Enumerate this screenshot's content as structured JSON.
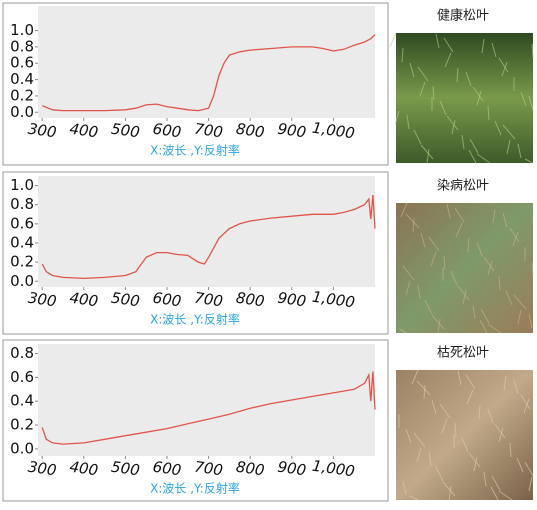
{
  "chart_data": [
    {
      "type": "line",
      "xlabel": "X:波长 ,Y:反射率",
      "color": "#e0554a",
      "xlim": [
        290,
        1100
      ],
      "xticks": [
        300,
        400,
        500,
        600,
        700,
        800,
        900,
        {
          "value": 1000,
          "label": "1,000"
        }
      ],
      "ylim": [
        -0.07,
        1.3
      ],
      "yticks": [
        {
          "value": 0,
          "label": "0.0"
        },
        0.2,
        0.4,
        0.6,
        0.8,
        {
          "value": 1,
          "label": "1.0"
        }
      ],
      "x": [
        300,
        325,
        350,
        400,
        450,
        500,
        525,
        550,
        575,
        600,
        625,
        650,
        675,
        700,
        712,
        725,
        737,
        750,
        775,
        800,
        850,
        900,
        950,
        975,
        1000,
        1025,
        1050,
        1075,
        1090,
        1100
      ],
      "values": [
        0.08,
        0.03,
        0.02,
        0.02,
        0.02,
        0.03,
        0.05,
        0.09,
        0.1,
        0.07,
        0.05,
        0.03,
        0.02,
        0.05,
        0.2,
        0.45,
        0.6,
        0.7,
        0.74,
        0.76,
        0.78,
        0.8,
        0.8,
        0.78,
        0.75,
        0.77,
        0.82,
        0.86,
        0.9,
        0.95
      ]
    },
    {
      "type": "line",
      "xlabel": "X:波长 ,Y:反射率",
      "color": "#e0554a",
      "xlim": [
        290,
        1100
      ],
      "xticks": [
        300,
        400,
        500,
        600,
        700,
        800,
        900,
        {
          "value": 1000,
          "label": "1,000"
        }
      ],
      "ylim": [
        -0.06,
        1.1
      ],
      "yticks": [
        {
          "value": 0,
          "label": "0.0"
        },
        0.2,
        0.4,
        0.6,
        0.8,
        {
          "value": 1,
          "label": "1.0"
        }
      ],
      "x": [
        300,
        310,
        325,
        350,
        400,
        450,
        500,
        525,
        550,
        575,
        600,
        625,
        650,
        675,
        690,
        700,
        725,
        750,
        775,
        800,
        850,
        900,
        950,
        1000,
        1025,
        1050,
        1075,
        1085,
        1090,
        1095,
        1100
      ],
      "values": [
        0.18,
        0.1,
        0.06,
        0.04,
        0.03,
        0.04,
        0.06,
        0.1,
        0.25,
        0.3,
        0.3,
        0.28,
        0.27,
        0.2,
        0.18,
        0.25,
        0.45,
        0.55,
        0.6,
        0.63,
        0.66,
        0.68,
        0.7,
        0.7,
        0.72,
        0.75,
        0.8,
        0.86,
        0.65,
        0.9,
        0.55
      ]
    },
    {
      "type": "line",
      "xlabel": "X:波长 ,Y:反射率",
      "color": "#e0554a",
      "xlim": [
        290,
        1100
      ],
      "xticks": [
        300,
        400,
        500,
        600,
        700,
        800,
        900,
        {
          "value": 1000,
          "label": "1,000"
        }
      ],
      "ylim": [
        -0.06,
        0.88
      ],
      "yticks": [
        {
          "value": 0,
          "label": "0.0"
        },
        0.2,
        0.4,
        0.6,
        0.8
      ],
      "x": [
        300,
        310,
        325,
        350,
        400,
        450,
        500,
        550,
        600,
        650,
        700,
        750,
        800,
        850,
        900,
        950,
        1000,
        1050,
        1075,
        1085,
        1090,
        1095,
        1100
      ],
      "values": [
        0.18,
        0.08,
        0.05,
        0.04,
        0.05,
        0.08,
        0.11,
        0.14,
        0.17,
        0.21,
        0.25,
        0.29,
        0.34,
        0.38,
        0.41,
        0.44,
        0.47,
        0.5,
        0.55,
        0.62,
        0.4,
        0.65,
        0.33
      ]
    }
  ],
  "photos": [
    {
      "label": "健康松叶"
    },
    {
      "label": "染病松叶"
    },
    {
      "label": "枯死松叶"
    }
  ]
}
